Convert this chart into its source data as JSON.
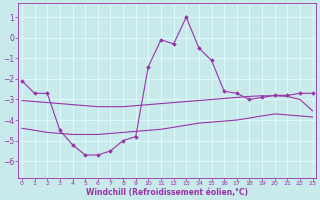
{
  "xlabel": "Windchill (Refroidissement éolien,°C)",
  "xlim": [
    -0.3,
    23.3
  ],
  "ylim": [
    -6.8,
    1.7
  ],
  "yticks": [
    1,
    0,
    -1,
    -2,
    -3,
    -4,
    -5,
    -6
  ],
  "xticks": [
    0,
    1,
    2,
    3,
    4,
    5,
    6,
    7,
    8,
    9,
    10,
    11,
    12,
    13,
    14,
    15,
    16,
    17,
    18,
    19,
    20,
    21,
    22,
    23
  ],
  "bg_color": "#c8eaea",
  "line_color": "#9933aa",
  "grid_color": "#dfffff",
  "line1_x": [
    0,
    1,
    2,
    3,
    4,
    5,
    6,
    7,
    8,
    9,
    10,
    11,
    12,
    13,
    14,
    15,
    16,
    17,
    18,
    19,
    20,
    21,
    22,
    23
  ],
  "line1_y": [
    -2.1,
    -2.7,
    -2.7,
    -4.5,
    -5.2,
    -5.7,
    -5.7,
    -5.5,
    -5.0,
    -4.8,
    -1.4,
    -0.1,
    -0.3,
    1.0,
    -0.5,
    -1.1,
    -2.6,
    -2.7,
    -3.0,
    -2.9,
    -2.8,
    -2.8,
    -2.7,
    -2.7
  ],
  "line2_x": [
    0,
    1,
    2,
    3,
    4,
    5,
    6,
    7,
    8,
    9,
    10,
    11,
    12,
    13,
    14,
    15,
    16,
    17,
    18,
    19,
    20,
    21,
    22,
    23
  ],
  "line2_y": [
    -3.05,
    -3.1,
    -3.15,
    -3.2,
    -3.25,
    -3.3,
    -3.35,
    -3.35,
    -3.35,
    -3.3,
    -3.25,
    -3.2,
    -3.15,
    -3.1,
    -3.05,
    -3.0,
    -2.95,
    -2.9,
    -2.85,
    -2.82,
    -2.82,
    -2.85,
    -3.0,
    -3.55
  ],
  "line3_x": [
    0,
    1,
    2,
    3,
    4,
    5,
    6,
    7,
    8,
    9,
    10,
    11,
    12,
    13,
    14,
    15,
    16,
    17,
    18,
    19,
    20,
    21,
    22,
    23
  ],
  "line3_y": [
    -4.4,
    -4.5,
    -4.6,
    -4.65,
    -4.7,
    -4.7,
    -4.7,
    -4.65,
    -4.6,
    -4.55,
    -4.5,
    -4.45,
    -4.35,
    -4.25,
    -4.15,
    -4.1,
    -4.05,
    -4.0,
    -3.9,
    -3.8,
    -3.7,
    -3.75,
    -3.8,
    -3.85
  ]
}
